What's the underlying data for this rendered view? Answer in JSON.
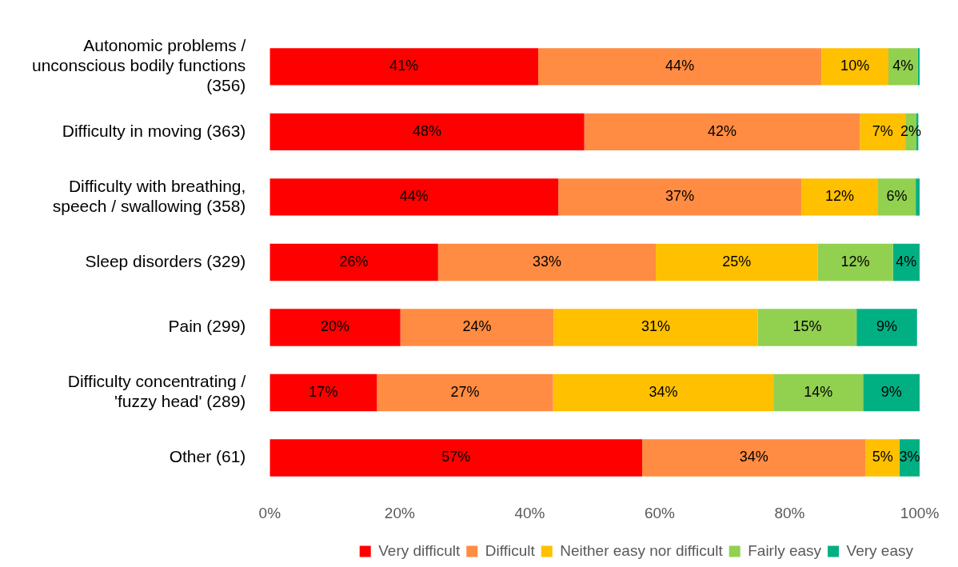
{
  "chart_data": {
    "type": "bar",
    "orientation": "horizontal",
    "stacked": true,
    "legend": "bottom",
    "grid": false,
    "categories": [
      "Autonomic problems / unconscious bodily functions (356)",
      "Difficulty in moving (363)",
      "Difficulty with breathing, speech / swallowing (358)",
      "Sleep disorders (329)",
      "Pain (299)",
      "Difficulty concentrating / 'fuzzy head' (289)",
      "Other (61)"
    ],
    "xlim": [
      0,
      100
    ],
    "xticks": [
      {
        "value": 0,
        "label": "0%"
      },
      {
        "value": 20,
        "label": "20%"
      },
      {
        "value": 40,
        "label": "40%"
      },
      {
        "value": 60,
        "label": "60%"
      },
      {
        "value": 80,
        "label": "80%"
      },
      {
        "value": 100,
        "label": "100%"
      }
    ],
    "series": [
      {
        "name": "Very difficult",
        "color": "#ff0000",
        "values": [
          41.3,
          48.4,
          44.4,
          25.9,
          20.1,
          16.5,
          57.3
        ],
        "value_labels": [
          "41%",
          "48%",
          "44%",
          "26%",
          "20%",
          "17%",
          "57%"
        ]
      },
      {
        "name": "Difficult",
        "color": "#ff8c42",
        "values": [
          43.6,
          42.4,
          37.4,
          33.5,
          23.6,
          27.1,
          34.4
        ],
        "value_labels": [
          "44%",
          "42%",
          "37%",
          "33%",
          "24%",
          "27%",
          "34%"
        ]
      },
      {
        "name": "Neither easy nor difficult",
        "color": "#ffc000",
        "values": [
          10.3,
          7,
          11.8,
          24.9,
          31.4,
          33.9,
          5.2
        ],
        "value_labels": [
          "10%",
          "7%",
          "12%",
          "25%",
          "31%",
          "34%",
          "5%"
        ]
      },
      {
        "name": "Fairly easy",
        "color": "#92d050",
        "values": [
          4.5,
          1.7,
          5.8,
          11.6,
          15.2,
          13.8,
          null
        ],
        "value_labels": [
          "4%",
          "2%",
          "6%",
          "12%",
          "15%",
          "14%",
          null
        ]
      },
      {
        "name": "Very easy",
        "color": "#00b083",
        "values": [
          0.3,
          0.3,
          0.6,
          4.1,
          9.3,
          8.7,
          3.1
        ],
        "value_labels": [
          null,
          null,
          null,
          "4%",
          "9%",
          "9%",
          "3%"
        ]
      }
    ]
  }
}
